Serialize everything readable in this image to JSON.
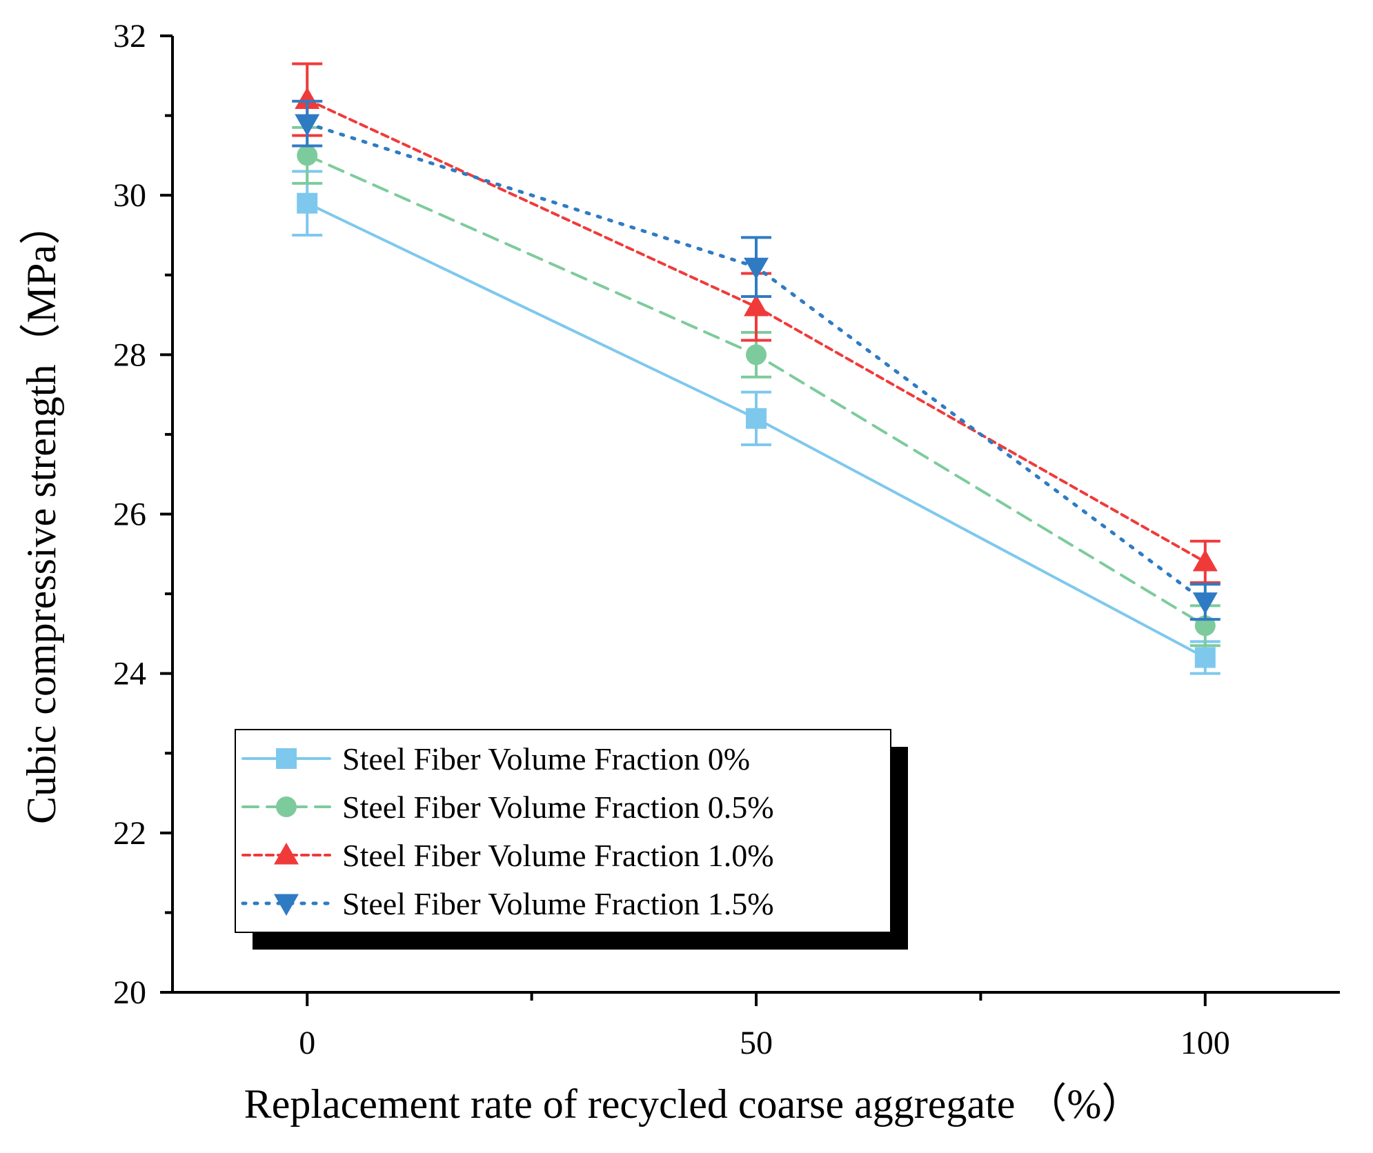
{
  "chart_data": {
    "type": "line",
    "title": "",
    "xlabel": "Replacement rate of recycled coarse aggregate （%）",
    "ylabel": "Cubic compressive strength（MPa）",
    "x": [
      0,
      50,
      100
    ],
    "x_ticks": [
      "0",
      "50",
      "100"
    ],
    "xlim": [
      -15,
      115
    ],
    "ylim": [
      20,
      32
    ],
    "y_ticks": [
      "20",
      "22",
      "24",
      "26",
      "28",
      "30",
      "32"
    ],
    "grid": false,
    "legend_position": "lower-left",
    "series": [
      {
        "name": "Steel Fiber Volume Fraction 0%",
        "values": [
          29.9,
          27.2,
          24.2
        ],
        "errors": [
          0.4,
          0.33,
          0.2
        ],
        "color": "#7EC8EE",
        "marker": "square",
        "line_style": "solid"
      },
      {
        "name": "Steel Fiber Volume Fraction 0.5%",
        "values": [
          30.5,
          28.0,
          24.6
        ],
        "errors": [
          0.35,
          0.28,
          0.25
        ],
        "color": "#7DCB9C",
        "marker": "circle",
        "line_style": "dashed"
      },
      {
        "name": "Steel Fiber Volume Fraction 1.0%",
        "values": [
          31.2,
          28.6,
          25.4
        ],
        "errors": [
          0.45,
          0.42,
          0.26
        ],
        "color": "#F03A3A",
        "marker": "triangle-up",
        "line_style": "short-dash"
      },
      {
        "name": "Steel Fiber Volume Fraction 1.5%",
        "values": [
          30.9,
          29.1,
          24.9
        ],
        "errors": [
          0.28,
          0.37,
          0.22
        ],
        "color": "#2F7BC3",
        "marker": "triangle-down",
        "line_style": "dotted"
      }
    ]
  }
}
